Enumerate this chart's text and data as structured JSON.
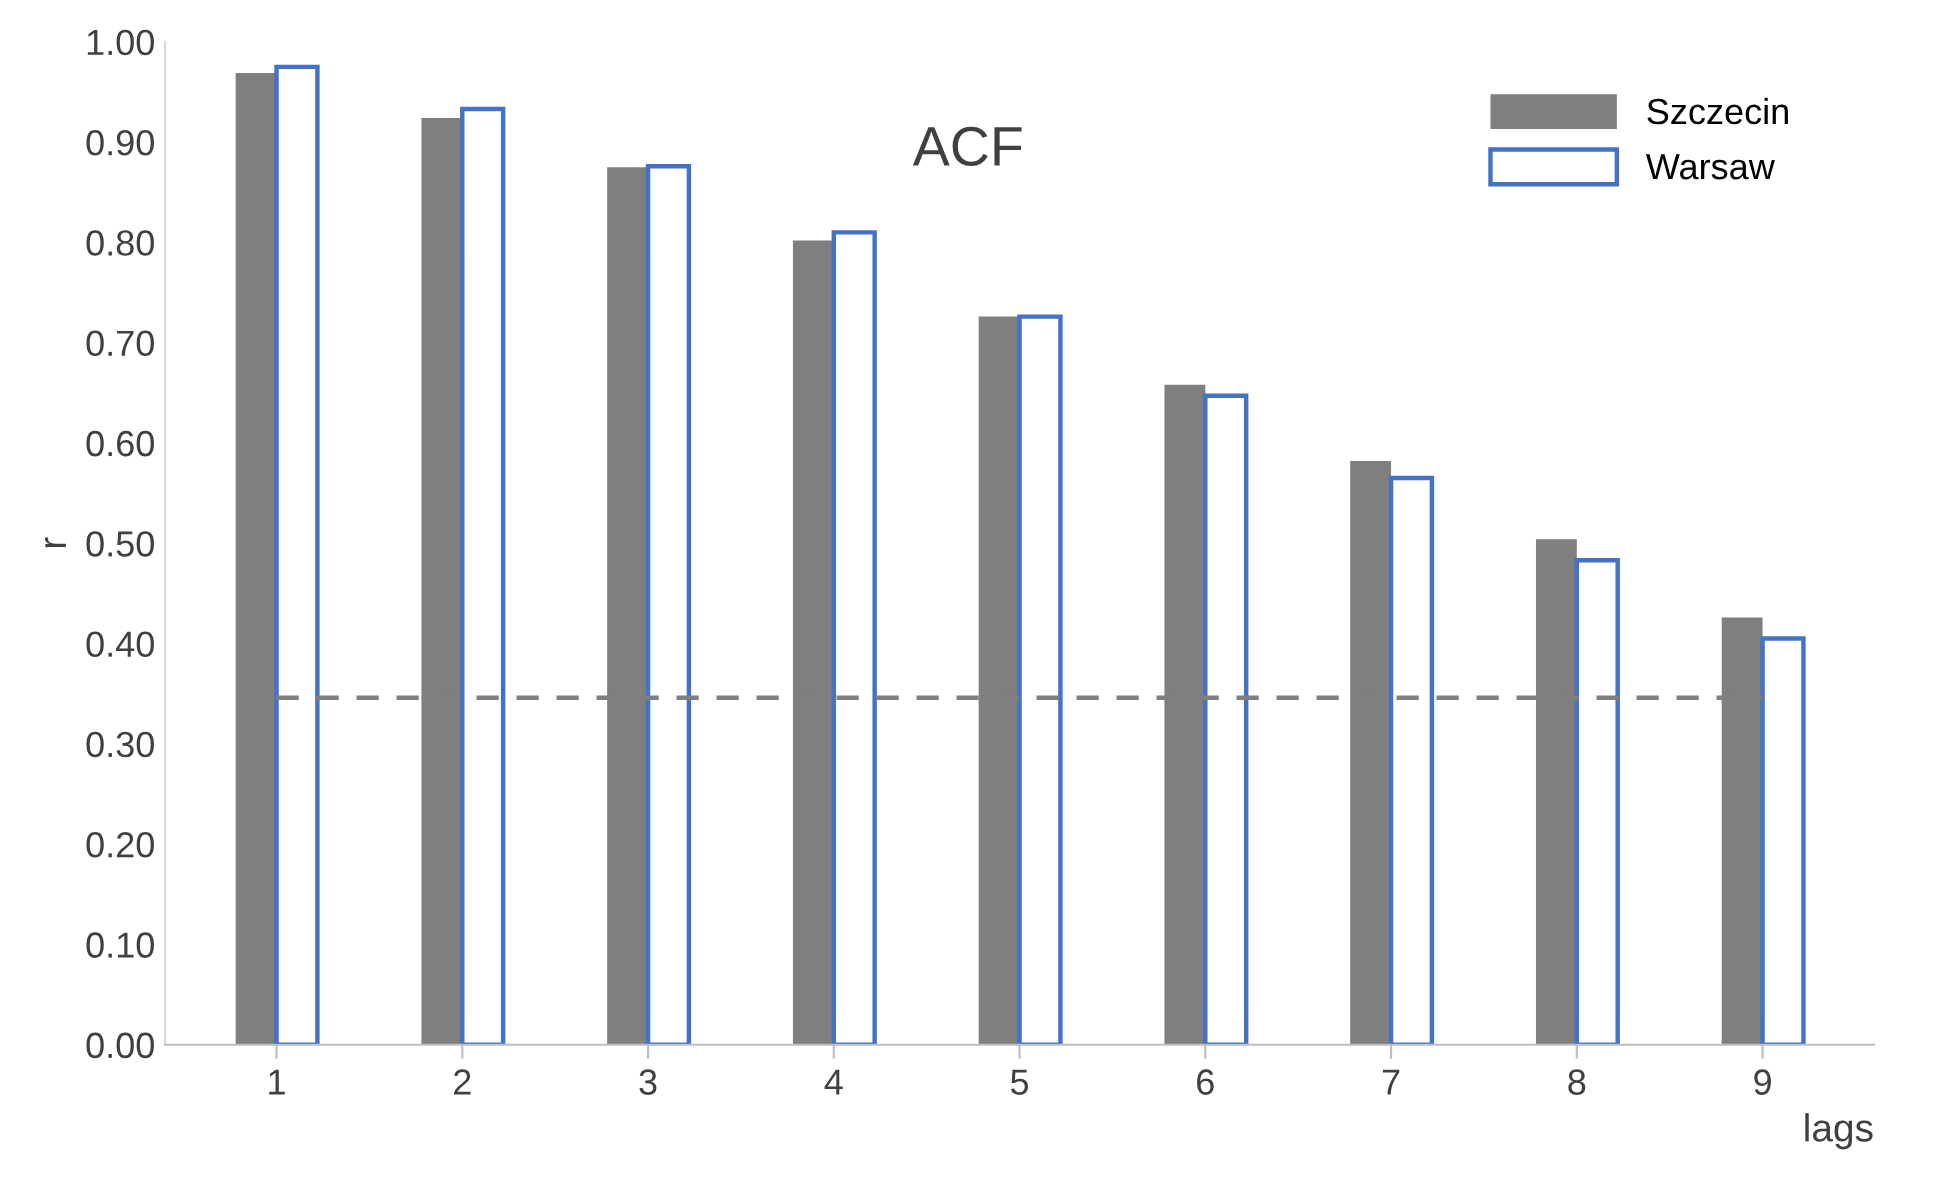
{
  "chart_data": {
    "type": "bar",
    "title": "ACF",
    "xlabel": "lags",
    "ylabel": "r",
    "categories": [
      "1",
      "2",
      "3",
      "4",
      "5",
      "6",
      "7",
      "8",
      "9"
    ],
    "series": [
      {
        "name": "Szczecin",
        "color": "#7f7f7f",
        "values": [
          0.969,
          0.924,
          0.875,
          0.802,
          0.726,
          0.658,
          0.582,
          0.504,
          0.426
        ]
      },
      {
        "name": "Warsaw",
        "color": "#4472c4",
        "values": [
          0.975,
          0.933,
          0.876,
          0.81,
          0.726,
          0.647,
          0.565,
          0.483,
          0.405
        ]
      }
    ],
    "ylim": [
      0,
      1
    ],
    "yticks": [
      {
        "value": 0,
        "label": "0.00"
      },
      {
        "value": 0.1,
        "label": "0.10"
      },
      {
        "value": 0.2,
        "label": "0.20"
      },
      {
        "value": 0.3,
        "label": "0.30"
      },
      {
        "value": 0.4,
        "label": "0.40"
      },
      {
        "value": 0.5,
        "label": "0.50"
      },
      {
        "value": 0.6,
        "label": "0.60"
      },
      {
        "value": 0.7,
        "label": "0.70"
      },
      {
        "value": 0.8,
        "label": "0.80"
      },
      {
        "value": 0.9,
        "label": "0.90"
      },
      {
        "value": 1,
        "label": "1.00"
      }
    ],
    "ref_lines": [
      {
        "axis": "y",
        "value": 0.346,
        "color": "#7f7f7f",
        "line_style": "dashed"
      }
    ],
    "legend": "top right",
    "grid": false
  }
}
